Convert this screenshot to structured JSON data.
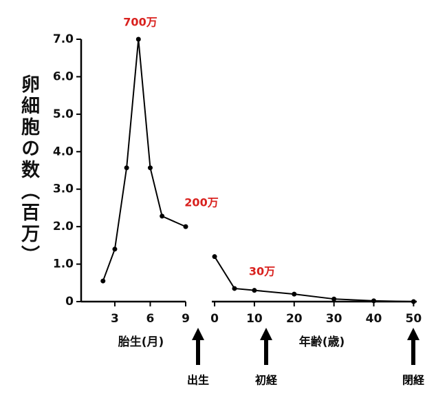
{
  "chart_data": [
    {
      "type": "line",
      "xlabel": "胎生(月)",
      "ylabel": "卵細胞の数（百万）",
      "x": [
        2,
        3,
        4,
        5,
        6,
        7,
        9
      ],
      "values": [
        0.55,
        1.4,
        3.57,
        7.0,
        3.57,
        2.28,
        2.0
      ],
      "color": "#000000",
      "xlim": [
        0.15,
        9
      ],
      "xticks": [
        3,
        6,
        9
      ],
      "ylim": [
        0,
        7
      ],
      "yticks": [
        0,
        {
          "value": 1,
          "label": "1.0"
        },
        {
          "value": 2,
          "label": "2.0"
        },
        {
          "value": 3,
          "label": "3.0"
        },
        {
          "value": 4,
          "label": "4.0"
        },
        {
          "value": 5,
          "label": "5.0"
        },
        {
          "value": 6,
          "label": "6.0"
        },
        {
          "value": 7,
          "label": "7.0"
        }
      ],
      "annotations": [
        "700万",
        "200万",
        "出生"
      ]
    },
    {
      "type": "line",
      "xlabel": "年齢(歳)",
      "x": [
        0,
        5,
        10,
        20,
        30,
        40,
        50
      ],
      "values": [
        1.2,
        0.35,
        0.3,
        0.2,
        0.07,
        0.02,
        0
      ],
      "color": "#000000",
      "xlim": [
        -0.7,
        50.8
      ],
      "xticks": [
        0,
        10,
        20,
        30,
        40,
        50
      ],
      "ylim": [
        0,
        7
      ],
      "annotations": [
        "30万",
        "初経",
        "閉経"
      ]
    }
  ]
}
